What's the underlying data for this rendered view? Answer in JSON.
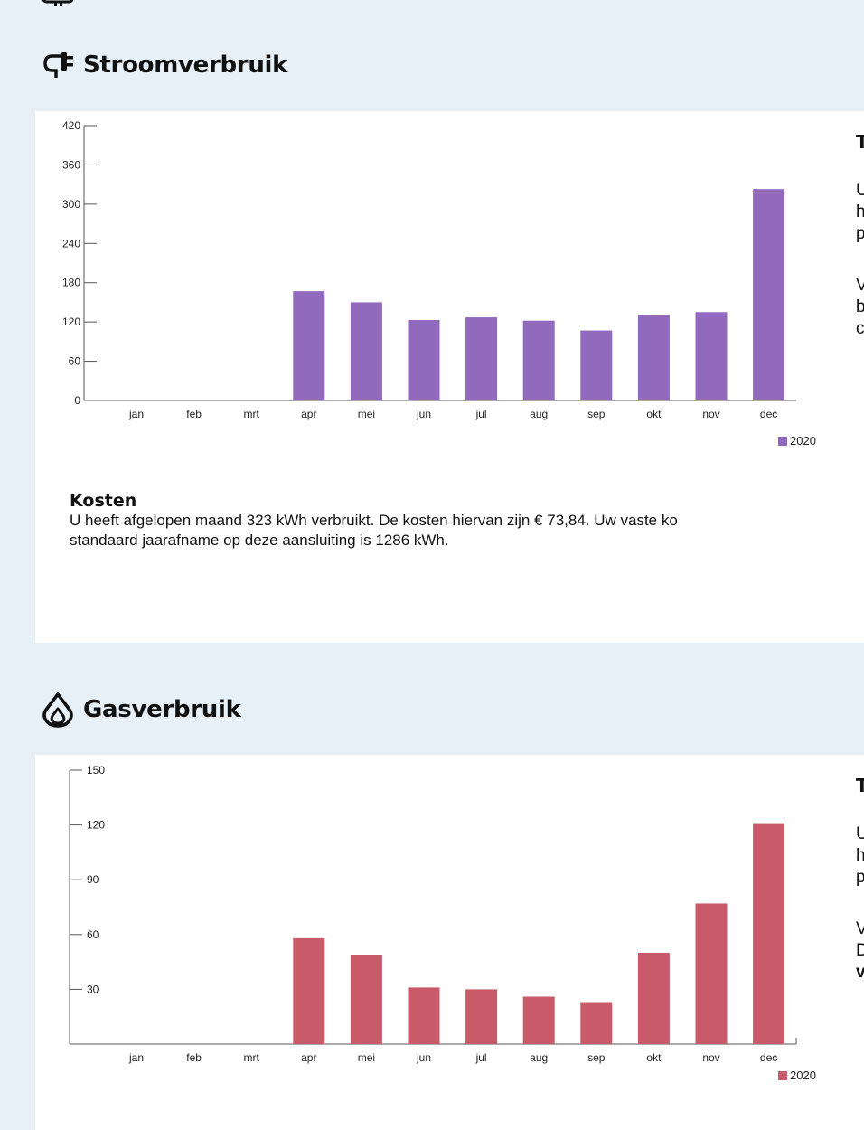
{
  "page": {
    "top_icon": "plug-icon"
  },
  "electricity": {
    "title": "Stroomverbruik",
    "icon": "plug-icon",
    "side": {
      "heading": "T",
      "p1_lines": [
        "U",
        "h",
        "p"
      ],
      "p2_lines": [
        "V",
        "b",
        "c"
      ]
    },
    "kosten_heading": "Kosten",
    "kosten_text_1": "U heeft afgelopen maand 323 kWh verbruikt. De kosten hiervan zijn € 73,84. Uw vaste ko",
    "kosten_text_2": "standaard jaarafname op deze aansluiting is 1286 kWh.",
    "legend_label": "2020",
    "color": "#9169bd"
  },
  "gas": {
    "title": "Gasverbruik",
    "icon": "flame-icon",
    "side": {
      "heading": "T",
      "p1_lines": [
        "U",
        "h",
        "p"
      ],
      "p2_lines": [
        "V",
        "D",
        "v"
      ]
    },
    "legend_label": "2020",
    "color": "#c85a6a"
  },
  "chart_data": [
    {
      "type": "bar",
      "categories": [
        "jan",
        "feb",
        "mrt",
        "apr",
        "mei",
        "jun",
        "jul",
        "aug",
        "sep",
        "okt",
        "nov",
        "dec"
      ],
      "series": [
        {
          "name": "2020",
          "values": [
            0,
            0,
            0,
            167,
            150,
            123,
            127,
            122,
            107,
            131,
            135,
            323
          ]
        }
      ],
      "yticks": [
        0,
        60,
        120,
        180,
        240,
        300,
        360,
        420
      ],
      "ylim": [
        0,
        420
      ],
      "title": "",
      "xlabel": "",
      "ylabel": "",
      "legend": "bottom-right",
      "grid": false
    },
    {
      "type": "bar",
      "categories": [
        "jan",
        "feb",
        "mrt",
        "apr",
        "mei",
        "jun",
        "jul",
        "aug",
        "sep",
        "okt",
        "nov",
        "dec"
      ],
      "series": [
        {
          "name": "2020",
          "values": [
            0,
            0,
            0,
            58,
            49,
            31,
            30,
            26,
            23,
            50,
            77,
            121
          ]
        }
      ],
      "yticks": [
        30,
        60,
        90,
        120,
        150
      ],
      "ylim": [
        0,
        150
      ],
      "title": "",
      "xlabel": "",
      "ylabel": "",
      "legend": "bottom-right",
      "grid": false
    }
  ]
}
